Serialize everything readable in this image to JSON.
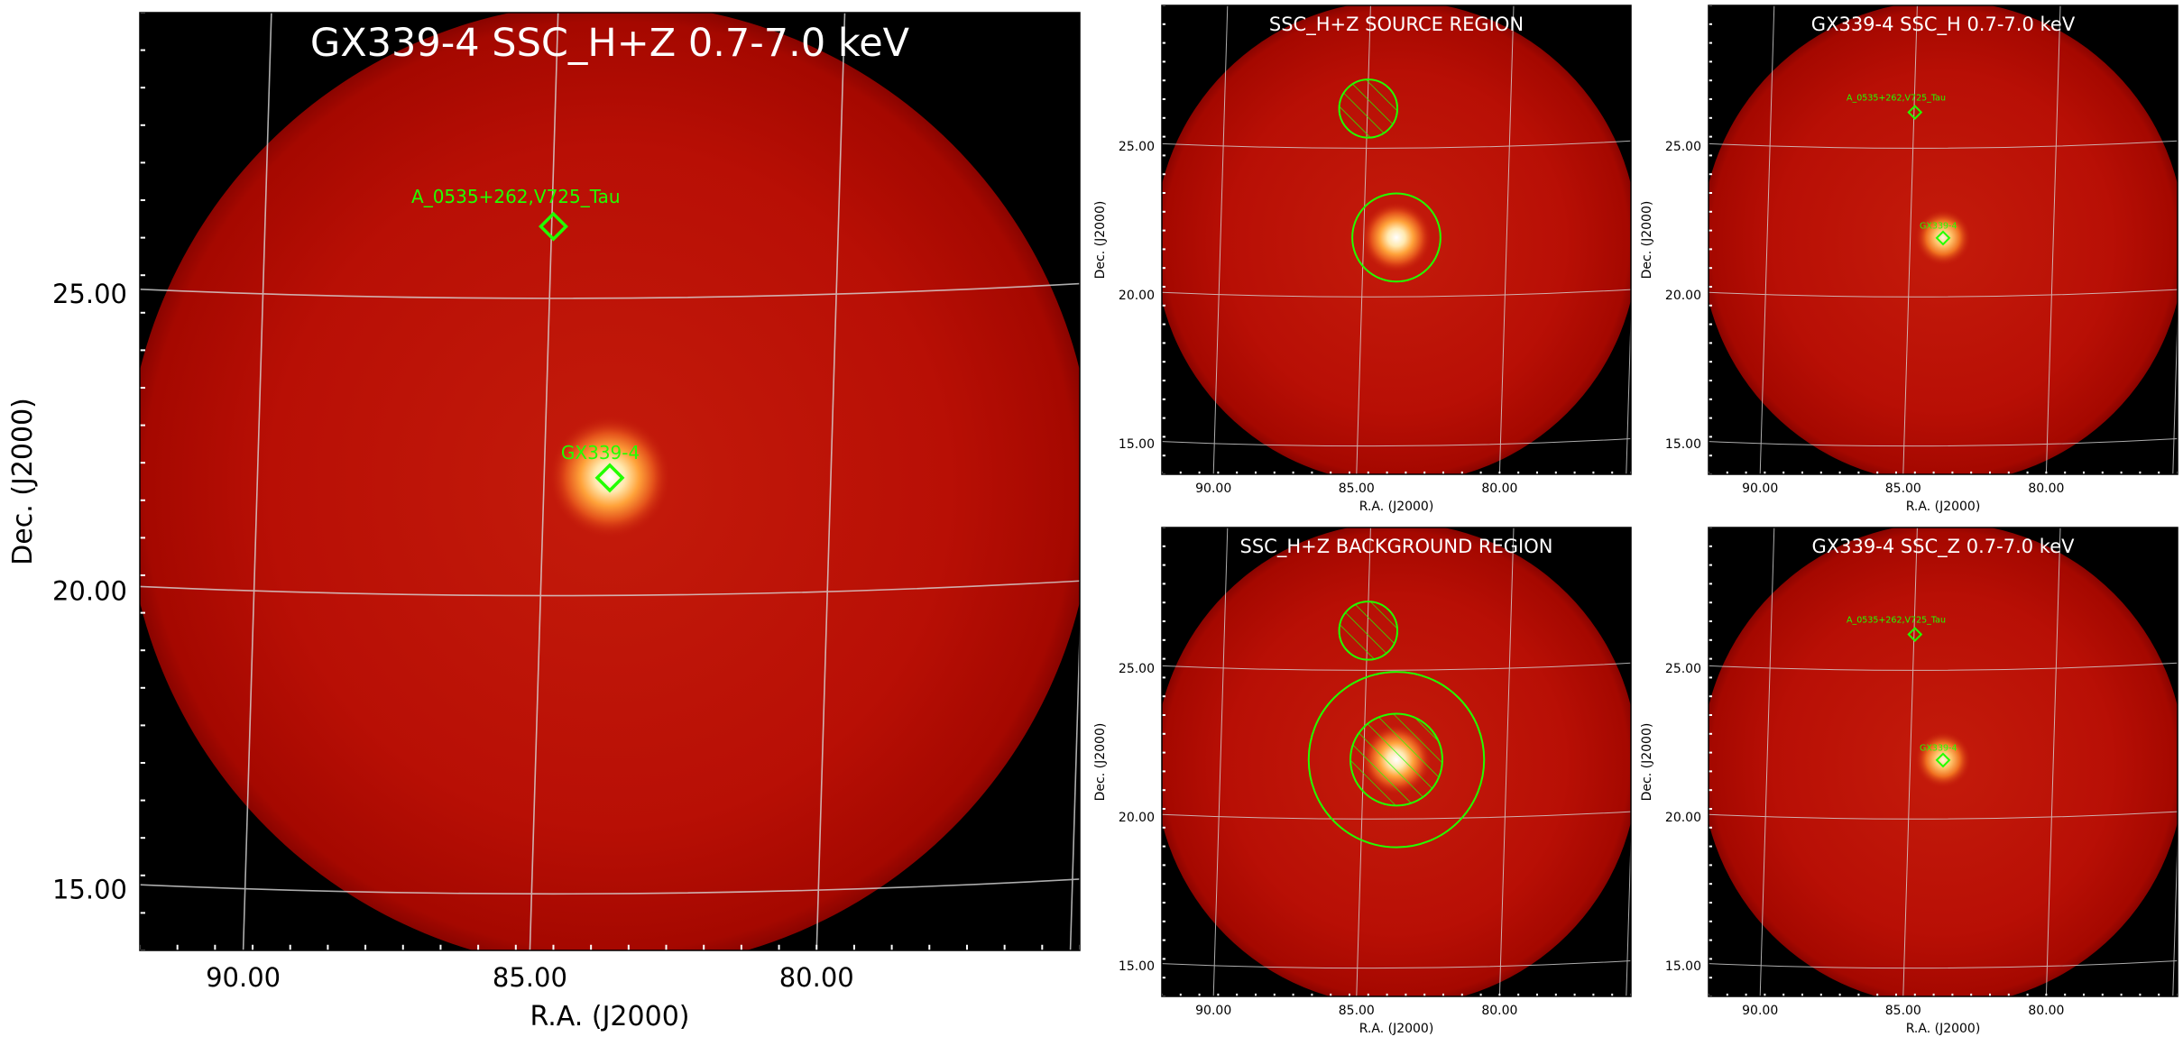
{
  "figure": {
    "panels": [
      {
        "id": "main",
        "title": "GX339-4 SSC_H+Z 0.7-7.0 keV",
        "xlabel": "R.A. (J2000)",
        "ylabel": "Dec. (J2000)",
        "xticks": [
          "90.00",
          "85.00",
          "80.00"
        ],
        "yticks": [
          "25.00",
          "20.00",
          "15.00"
        ],
        "sources": [
          {
            "label": "A_0535+262,V725_Tau",
            "marker": "diamond-marker"
          },
          {
            "label": "GX339-4",
            "marker": "diamond-marker"
          }
        ]
      },
      {
        "id": "source-region",
        "title": "SSC_H+Z SOURCE REGION",
        "xlabel": "R.A. (J2000)",
        "ylabel": "Dec. (J2000)",
        "xticks": [
          "90.00",
          "85.00",
          "80.00"
        ],
        "yticks": [
          "25.00",
          "20.00",
          "15.00"
        ],
        "regions": [
          "excluded-hatched-circle",
          "source-circle"
        ]
      },
      {
        "id": "h-band",
        "title": "GX339-4 SSC_H 0.7-7.0 keV",
        "xlabel": "R.A. (J2000)",
        "ylabel": "Dec. (J2000)",
        "xticks": [
          "90.00",
          "85.00",
          "80.00"
        ],
        "yticks": [
          "25.00",
          "20.00",
          "15.00"
        ],
        "sources": [
          {
            "label": "A_0535+262,V725_Tau",
            "marker": "diamond-marker"
          },
          {
            "label": "GX339-4",
            "marker": "diamond-marker"
          }
        ]
      },
      {
        "id": "background-region",
        "title": "SSC_H+Z BACKGROUND REGION",
        "xlabel": "R.A. (J2000)",
        "ylabel": "Dec. (J2000)",
        "xticks": [
          "90.00",
          "85.00",
          "80.00"
        ],
        "yticks": [
          "25.00",
          "20.00",
          "15.00"
        ],
        "regions": [
          "excluded-hatched-circle",
          "background-annulus",
          "excluded-hatched-circle"
        ]
      },
      {
        "id": "z-band",
        "title": "GX339-4 SSC_Z 0.7-7.0 keV",
        "xlabel": "R.A. (J2000)",
        "ylabel": "Dec. (J2000)",
        "xticks": [
          "90.00",
          "85.00",
          "80.00"
        ],
        "yticks": [
          "25.00",
          "20.00",
          "15.00"
        ],
        "sources": [
          {
            "label": "A_0535+262,V725_Tau",
            "marker": "diamond-marker"
          },
          {
            "label": "GX339-4",
            "marker": "diamond-marker"
          }
        ]
      }
    ],
    "colors": {
      "disk_outer": "#a80500",
      "disk_inner": "#c11a0a",
      "background": "#000000",
      "marker": "#22ff00",
      "grid": "#d8d8d8",
      "title_text": "#ffffff"
    }
  }
}
